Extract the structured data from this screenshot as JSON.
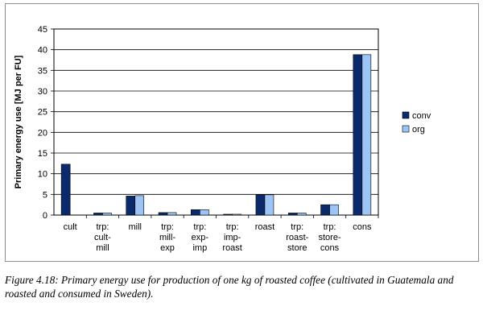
{
  "chart_data": {
    "type": "bar",
    "ylabel": "Primary energy use [MJ per FU]",
    "ylim": [
      0,
      45
    ],
    "yticks": [
      0,
      5,
      10,
      15,
      20,
      25,
      30,
      35,
      40,
      45
    ],
    "grid": "horizontal",
    "legend_position": "right",
    "categories": [
      [
        "cult"
      ],
      [
        "trp:",
        "cult-",
        "mill"
      ],
      [
        "mill"
      ],
      [
        "trp:",
        "mill-",
        "exp"
      ],
      [
        "trp:",
        "exp-",
        "imp"
      ],
      [
        "trp:",
        "imp-",
        "roast"
      ],
      [
        "roast"
      ],
      [
        "trp:",
        "roast-",
        "store"
      ],
      [
        "trp:",
        "store-",
        "cons"
      ],
      [
        "cons"
      ]
    ],
    "series": [
      {
        "name": "conv",
        "color": "#0b2a6b",
        "values": [
          12.3,
          0.5,
          4.6,
          0.6,
          1.3,
          0.2,
          4.9,
          0.5,
          2.5,
          38.8
        ]
      },
      {
        "name": "org",
        "color": "#9cc5f5",
        "values": [
          null,
          0.5,
          4.7,
          0.6,
          1.3,
          0.2,
          4.9,
          0.5,
          2.5,
          38.8
        ]
      }
    ]
  },
  "caption": "Figure 4.18: Primary energy use for production of one kg of roasted coffee (cultivated in Guatemala and roasted and consumed in Sweden)."
}
